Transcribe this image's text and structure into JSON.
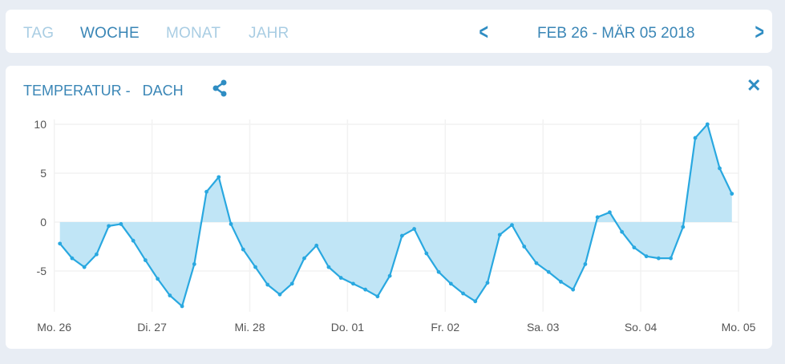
{
  "tabs": [
    {
      "label": "TAG",
      "active": false
    },
    {
      "label": "WOCHE",
      "active": true
    },
    {
      "label": "MONAT",
      "active": false
    },
    {
      "label": "JAHR",
      "active": false
    }
  ],
  "date_range": "FEB 26 - MÄR 05 2018",
  "icons": {
    "prev": "chevron-left-icon",
    "next": "chevron-right-icon",
    "share": "share-icon",
    "close": "close-icon"
  },
  "panel": {
    "title": "TEMPERATUR -   DACH"
  },
  "colors": {
    "accent": "#2f8dc3",
    "line": "#29a8e0",
    "fill": "#bde4f6"
  },
  "chart_data": {
    "type": "area",
    "title": "TEMPERATUR - DACH",
    "xlabel": "",
    "ylabel": "",
    "ylim": [
      -9,
      10
    ],
    "yticks": [
      10,
      5,
      0,
      -5
    ],
    "ytick_labels": [
      "10",
      "5",
      "0",
      "-5"
    ],
    "xtick_labels": [
      "Mo. 26",
      "Di. 27",
      "Mi. 28",
      "Do. 01",
      "Fr. 02",
      "Sa. 03",
      "So. 04",
      "Mo. 05"
    ],
    "points_per_day": 8,
    "grid": true,
    "values": [
      -2.2,
      -3.7,
      -4.6,
      -3.3,
      -0.4,
      -0.2,
      -1.9,
      -3.9,
      -5.8,
      -7.5,
      -8.6,
      -4.3,
      3.1,
      4.6,
      -0.2,
      -2.8,
      -4.6,
      -6.4,
      -7.4,
      -6.3,
      -3.7,
      -2.4,
      -4.6,
      -5.7,
      -6.3,
      -6.9,
      -7.6,
      -5.5,
      -1.4,
      -0.7,
      -3.2,
      -5.1,
      -6.3,
      -7.3,
      -8.1,
      -6.2,
      -1.3,
      -0.3,
      -2.5,
      -4.2,
      -5.1,
      -6.1,
      -6.9,
      -4.3,
      0.5,
      1.0,
      -1.0,
      -2.6,
      -3.5,
      -3.7,
      -3.7,
      -0.5,
      8.6,
      10.0,
      5.5,
      2.9
    ]
  }
}
